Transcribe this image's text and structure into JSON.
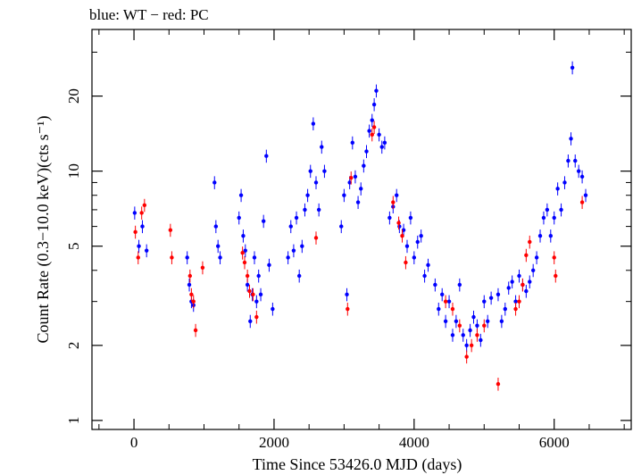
{
  "chart_data": {
    "type": "scatter",
    "title": "blue: WT − red: PC",
    "xlabel": "Time Since 53426.0 MJD (days)",
    "ylabel": "Count Rate (0.3−10.0 keV)(cts s⁻¹)",
    "x_scale": "linear",
    "y_scale": "log",
    "xlim": [
      -600,
      7100
    ],
    "ylim": [
      0.92,
      37
    ],
    "x_ticks": [
      0,
      2000,
      4000,
      6000
    ],
    "x_tick_labels": [
      "0",
      "2000",
      "4000",
      "6000"
    ],
    "y_ticks": [
      1,
      2,
      5,
      10,
      20
    ],
    "y_tick_labels": [
      "1",
      "2",
      "5",
      "10",
      "20"
    ],
    "grid": false,
    "legend": "none",
    "series": [
      {
        "name": "WT",
        "color": "#0000ff",
        "points": [
          [
            10,
            6.8
          ],
          [
            70,
            5.0
          ],
          [
            120,
            6.0
          ],
          [
            180,
            4.8
          ],
          [
            760,
            4.5
          ],
          [
            790,
            3.5
          ],
          [
            820,
            3.0
          ],
          [
            850,
            2.9
          ],
          [
            1150,
            9.0
          ],
          [
            1170,
            6.0
          ],
          [
            1200,
            5.0
          ],
          [
            1230,
            4.5
          ],
          [
            1500,
            6.5
          ],
          [
            1530,
            8.0
          ],
          [
            1560,
            5.5
          ],
          [
            1590,
            4.8
          ],
          [
            1620,
            3.5
          ],
          [
            1660,
            2.5
          ],
          [
            1690,
            3.2
          ],
          [
            1720,
            4.5
          ],
          [
            1750,
            3.0
          ],
          [
            1780,
            3.8
          ],
          [
            1810,
            3.2
          ],
          [
            1850,
            6.3
          ],
          [
            1890,
            11.5
          ],
          [
            1930,
            4.2
          ],
          [
            1980,
            2.8
          ],
          [
            2200,
            4.5
          ],
          [
            2240,
            6.0
          ],
          [
            2280,
            4.8
          ],
          [
            2320,
            6.5
          ],
          [
            2360,
            3.8
          ],
          [
            2400,
            5.0
          ],
          [
            2440,
            7.0
          ],
          [
            2480,
            8.0
          ],
          [
            2520,
            10.0
          ],
          [
            2560,
            15.5
          ],
          [
            2600,
            9.0
          ],
          [
            2640,
            7.0
          ],
          [
            2680,
            12.5
          ],
          [
            2720,
            10.0
          ],
          [
            2960,
            6.0
          ],
          [
            3000,
            8.0
          ],
          [
            3040,
            3.2
          ],
          [
            3080,
            9.0
          ],
          [
            3120,
            13.0
          ],
          [
            3160,
            9.5
          ],
          [
            3200,
            7.5
          ],
          [
            3240,
            8.5
          ],
          [
            3280,
            10.5
          ],
          [
            3320,
            12.0
          ],
          [
            3360,
            14.5
          ],
          [
            3400,
            16.0
          ],
          [
            3430,
            18.5
          ],
          [
            3460,
            21.0
          ],
          [
            3500,
            14.0
          ],
          [
            3540,
            12.5
          ],
          [
            3580,
            13.0
          ],
          [
            3650,
            6.5
          ],
          [
            3700,
            7.2
          ],
          [
            3750,
            8.0
          ],
          [
            3790,
            6.0
          ],
          [
            3850,
            5.8
          ],
          [
            3900,
            5.0
          ],
          [
            3950,
            6.5
          ],
          [
            4000,
            4.5
          ],
          [
            4050,
            5.2
          ],
          [
            4100,
            5.5
          ],
          [
            4150,
            3.8
          ],
          [
            4200,
            4.2
          ],
          [
            4300,
            3.5
          ],
          [
            4350,
            2.8
          ],
          [
            4400,
            3.2
          ],
          [
            4450,
            2.5
          ],
          [
            4500,
            3.0
          ],
          [
            4550,
            2.2
          ],
          [
            4600,
            2.5
          ],
          [
            4650,
            3.5
          ],
          [
            4700,
            2.2
          ],
          [
            4750,
            2.0
          ],
          [
            4800,
            2.3
          ],
          [
            4850,
            2.6
          ],
          [
            4900,
            2.4
          ],
          [
            4950,
            2.1
          ],
          [
            5000,
            3.0
          ],
          [
            5050,
            2.5
          ],
          [
            5100,
            3.1
          ],
          [
            5200,
            3.2
          ],
          [
            5250,
            2.5
          ],
          [
            5300,
            2.8
          ],
          [
            5350,
            3.4
          ],
          [
            5400,
            3.6
          ],
          [
            5450,
            3.0
          ],
          [
            5500,
            3.8
          ],
          [
            5550,
            3.5
          ],
          [
            5600,
            3.3
          ],
          [
            5650,
            3.6
          ],
          [
            5700,
            4.0
          ],
          [
            5750,
            4.5
          ],
          [
            5800,
            5.5
          ],
          [
            5850,
            6.5
          ],
          [
            5900,
            7.0
          ],
          [
            5950,
            5.5
          ],
          [
            6000,
            6.5
          ],
          [
            6050,
            8.5
          ],
          [
            6100,
            7.0
          ],
          [
            6150,
            9.0
          ],
          [
            6200,
            11.0
          ],
          [
            6240,
            13.5
          ],
          [
            6260,
            26.0
          ],
          [
            6300,
            11.0
          ],
          [
            6350,
            10.0
          ],
          [
            6400,
            9.5
          ],
          [
            6450,
            8.0
          ]
        ]
      },
      {
        "name": "PC",
        "color": "#ff0000",
        "points": [
          [
            20,
            5.7
          ],
          [
            60,
            4.5
          ],
          [
            110,
            6.8
          ],
          [
            150,
            7.3
          ],
          [
            520,
            5.8
          ],
          [
            540,
            4.5
          ],
          [
            800,
            3.8
          ],
          [
            820,
            3.2
          ],
          [
            850,
            3.0
          ],
          [
            880,
            2.3
          ],
          [
            980,
            4.1
          ],
          [
            1550,
            4.7
          ],
          [
            1580,
            4.3
          ],
          [
            1620,
            3.8
          ],
          [
            1650,
            3.3
          ],
          [
            1700,
            3.2
          ],
          [
            1750,
            2.6
          ],
          [
            2600,
            5.4
          ],
          [
            3050,
            2.8
          ],
          [
            3100,
            9.4
          ],
          [
            3400,
            14.0
          ],
          [
            3430,
            15.0
          ],
          [
            3700,
            7.5
          ],
          [
            3780,
            6.2
          ],
          [
            3830,
            5.5
          ],
          [
            3880,
            4.3
          ],
          [
            4450,
            3.0
          ],
          [
            4550,
            2.8
          ],
          [
            4650,
            2.4
          ],
          [
            4750,
            1.8
          ],
          [
            4820,
            2.0
          ],
          [
            4900,
            2.2
          ],
          [
            5000,
            2.4
          ],
          [
            5200,
            1.4
          ],
          [
            5450,
            2.8
          ],
          [
            5500,
            3.0
          ],
          [
            5550,
            3.5
          ],
          [
            5600,
            4.6
          ],
          [
            5650,
            5.2
          ],
          [
            6000,
            4.5
          ],
          [
            6020,
            3.8
          ],
          [
            6400,
            7.5
          ]
        ]
      }
    ]
  }
}
